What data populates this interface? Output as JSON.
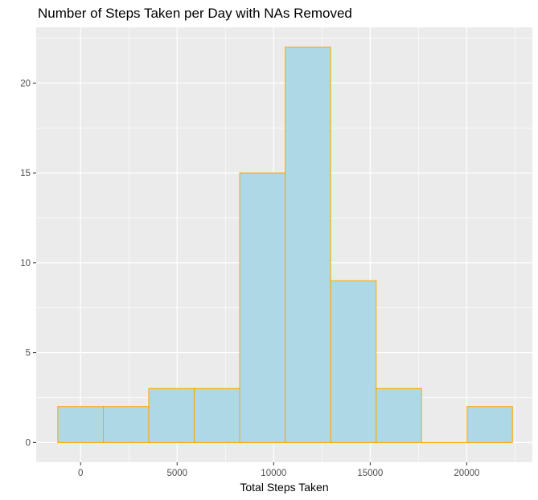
{
  "chart_data": {
    "type": "bar",
    "title": "Number of Steps Taken per Day with NAs Removed",
    "xlabel": "Total Steps Taken",
    "ylabel": "",
    "xlim": [
      -2300,
      23400
    ],
    "ylim": [
      -1.1,
      23.1
    ],
    "x_ticks": [
      0,
      5000,
      10000,
      15000,
      20000
    ],
    "x_tick_labels": [
      "0",
      "5000",
      "10000",
      "15000",
      "20000"
    ],
    "y_ticks": [
      0,
      5,
      10,
      15,
      20
    ],
    "y_tick_labels": [
      "0",
      "5",
      "10",
      "15",
      "20"
    ],
    "bins": [
      {
        "x0": -1180,
        "x1": 1180,
        "count": 2
      },
      {
        "x0": 1180,
        "x1": 3530,
        "count": 2
      },
      {
        "x0": 3530,
        "x1": 5890,
        "count": 3
      },
      {
        "x0": 5890,
        "x1": 8240,
        "count": 3
      },
      {
        "x0": 8240,
        "x1": 10600,
        "count": 15
      },
      {
        "x0": 10600,
        "x1": 12950,
        "count": 22
      },
      {
        "x0": 12950,
        "x1": 15310,
        "count": 9
      },
      {
        "x0": 15310,
        "x1": 17660,
        "count": 3
      },
      {
        "x0": 17660,
        "x1": 20020,
        "count": 0
      },
      {
        "x0": 20020,
        "x1": 22370,
        "count": 2
      }
    ],
    "grid": true,
    "colors": {
      "bar_fill": "#add8e6",
      "bar_stroke": "#ffa500",
      "panel_bg": "#ebebeb",
      "grid": "#ffffff"
    }
  }
}
